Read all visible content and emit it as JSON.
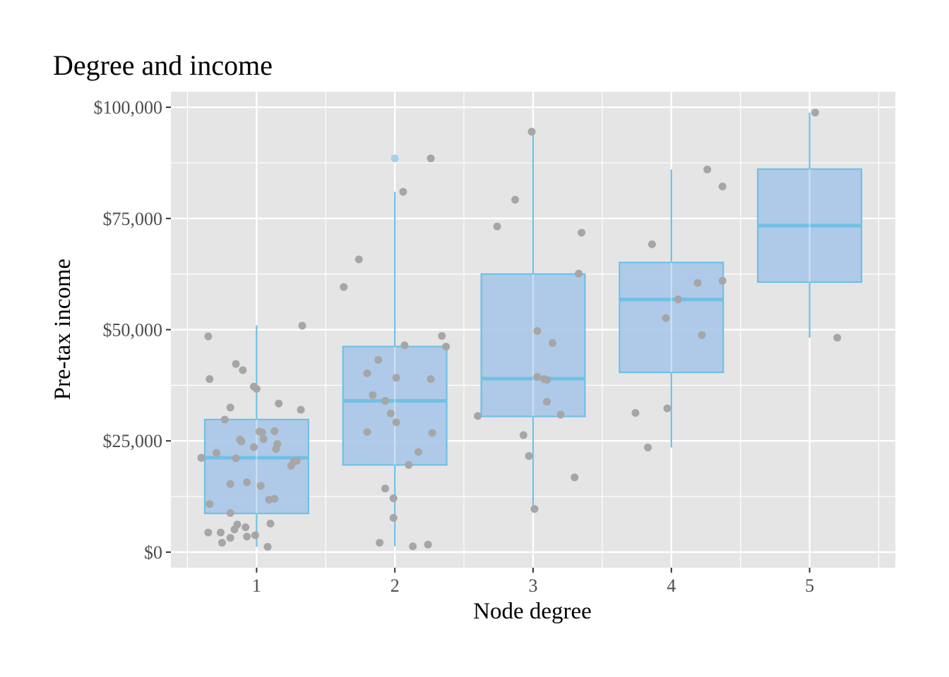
{
  "chart_data": {
    "type": "box",
    "title": "Degree and income",
    "xlabel": "Node degree",
    "ylabel": "Pre-tax income",
    "categories": [
      "1",
      "2",
      "3",
      "4",
      "5"
    ],
    "x_tick_labels": [
      "1",
      "2",
      "3",
      "4",
      "5"
    ],
    "y_ticks": [
      0,
      25000,
      50000,
      75000,
      100000
    ],
    "y_tick_labels": [
      "$0",
      "$25,000",
      "$50,000",
      "$75,000",
      "$100,000"
    ],
    "ylim": [
      -3500,
      103500
    ],
    "xlim": [
      0.38,
      5.62
    ],
    "grid": true,
    "colors": {
      "panel_background": "#e5e5e5",
      "gridline": "#ffffff",
      "box_fill": "#a9c8e8",
      "box_stroke": "#70c0e5",
      "points": "#a6a6a6",
      "outlier": "#9fd3ee"
    },
    "boxes": [
      {
        "category": "1",
        "whisker_low": 1200,
        "q1": 8700,
        "median": 21200,
        "q3": 29800,
        "whisker_high": 51000,
        "outliers": []
      },
      {
        "category": "2",
        "whisker_low": 1300,
        "q1": 19600,
        "median": 34000,
        "q3": 46200,
        "whisker_high": 81000,
        "outliers": [
          88500
        ]
      },
      {
        "category": "3",
        "whisker_low": 9700,
        "q1": 30500,
        "median": 39000,
        "q3": 62500,
        "whisker_high": 94500,
        "outliers": []
      },
      {
        "category": "4",
        "whisker_low": 23500,
        "q1": 40400,
        "median": 56800,
        "q3": 65100,
        "whisker_high": 86000,
        "outliers": []
      },
      {
        "category": "5",
        "whisker_low": 48200,
        "q1": 60700,
        "median": 73400,
        "q3": 86100,
        "whisker_high": 98800,
        "outliers": []
      }
    ],
    "points": [
      [
        0.65,
        48500
      ],
      [
        0.66,
        38900
      ],
      [
        0.85,
        42300
      ],
      [
        0.9,
        40900
      ],
      [
        0.81,
        32500
      ],
      [
        0.77,
        29800
      ],
      [
        0.98,
        37200
      ],
      [
        1.0,
        36700
      ],
      [
        1.33,
        50900
      ],
      [
        1.16,
        33400
      ],
      [
        1.32,
        32000
      ],
      [
        0.6,
        21200
      ],
      [
        0.71,
        22300
      ],
      [
        0.85,
        21100
      ],
      [
        0.88,
        25300
      ],
      [
        0.89,
        24900
      ],
      [
        0.98,
        23600
      ],
      [
        1.02,
        27100
      ],
      [
        1.04,
        26900
      ],
      [
        1.05,
        25400
      ],
      [
        1.13,
        27200
      ],
      [
        1.15,
        24300
      ],
      [
        1.14,
        23200
      ],
      [
        1.25,
        19400
      ],
      [
        1.27,
        20400
      ],
      [
        1.29,
        20500
      ],
      [
        0.81,
        15300
      ],
      [
        0.93,
        15700
      ],
      [
        1.03,
        14900
      ],
      [
        1.09,
        11800
      ],
      [
        1.13,
        12000
      ],
      [
        0.66,
        10800
      ],
      [
        0.81,
        8800
      ],
      [
        0.65,
        4400
      ],
      [
        0.74,
        4400
      ],
      [
        0.84,
        5100
      ],
      [
        0.86,
        6200
      ],
      [
        0.92,
        5600
      ],
      [
        0.93,
        3500
      ],
      [
        0.99,
        3800
      ],
      [
        1.1,
        6400
      ],
      [
        0.75,
        2100
      ],
      [
        0.81,
        3200
      ],
      [
        1.08,
        1200
      ],
      [
        1.63,
        59600
      ],
      [
        1.74,
        65800
      ],
      [
        1.8,
        40200
      ],
      [
        1.84,
        35300
      ],
      [
        1.88,
        43200
      ],
      [
        1.93,
        34000
      ],
      [
        1.97,
        31200
      ],
      [
        2.01,
        29200
      ],
      [
        1.8,
        27000
      ],
      [
        2.06,
        81000
      ],
      [
        2.07,
        46500
      ],
      [
        2.01,
        39200
      ],
      [
        2.26,
        88500
      ],
      [
        2.34,
        48600
      ],
      [
        2.37,
        46200
      ],
      [
        2.26,
        38900
      ],
      [
        2.27,
        26800
      ],
      [
        2.17,
        22500
      ],
      [
        2.1,
        19600
      ],
      [
        1.93,
        14300
      ],
      [
        1.99,
        12100
      ],
      [
        1.99,
        7700
      ],
      [
        1.89,
        2100
      ],
      [
        2.13,
        1300
      ],
      [
        2.24,
        1700
      ],
      [
        2.6,
        30600
      ],
      [
        2.74,
        73200
      ],
      [
        2.87,
        79200
      ],
      [
        2.99,
        94500
      ],
      [
        3.03,
        49700
      ],
      [
        3.03,
        39400
      ],
      [
        3.08,
        38900
      ],
      [
        3.1,
        38700
      ],
      [
        3.14,
        47000
      ],
      [
        3.1,
        33800
      ],
      [
        3.2,
        30900
      ],
      [
        2.93,
        26300
      ],
      [
        2.97,
        21600
      ],
      [
        3.01,
        9700
      ],
      [
        3.33,
        62600
      ],
      [
        3.35,
        71800
      ],
      [
        3.3,
        16800
      ],
      [
        3.74,
        31300
      ],
      [
        3.83,
        23500
      ],
      [
        3.86,
        69200
      ],
      [
        3.97,
        32300
      ],
      [
        3.96,
        52600
      ],
      [
        4.05,
        56800
      ],
      [
        4.19,
        60500
      ],
      [
        4.22,
        48800
      ],
      [
        4.26,
        86000
      ],
      [
        4.37,
        82200
      ],
      [
        4.37,
        61000
      ],
      [
        5.04,
        98800
      ],
      [
        5.2,
        48200
      ]
    ]
  }
}
